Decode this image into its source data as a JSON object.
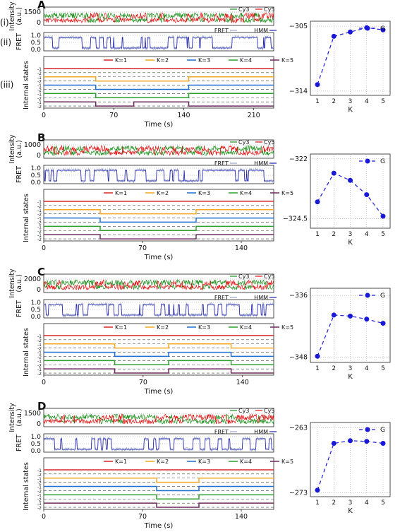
{
  "chart_data": [
    {
      "panel": "A",
      "roman": [
        "(i)",
        "(ii)",
        "(iii)"
      ],
      "type": "line",
      "time_label": "Time (s)",
      "time_ticks": [
        0,
        70,
        140,
        210
      ],
      "time_range": [
        0,
        230
      ],
      "intensity": {
        "ylabel": "Intensity\n(a.u.)",
        "yticks": [
          0,
          1500
        ],
        "legend": [
          "Cy3",
          "Cy5"
        ],
        "seed": 11
      },
      "fret": {
        "ylabel": "FRET",
        "yticks": [
          0.0,
          0.5,
          1.0
        ],
        "legend": [
          "FRET",
          "HMM"
        ],
        "seed": 12
      },
      "internal_states": {
        "ylabel": "Internal states",
        "legend": [
          "K=1",
          "K=2",
          "K=3",
          "K=4",
          "K=5"
        ],
        "switch_times": [
          52,
          145
        ],
        "k5_switch_times": [
          52,
          90,
          145
        ]
      },
      "model_selection": {
        "type": "line",
        "series": [
          {
            "name": "G",
            "x": [
              1,
              2,
              3,
              4,
              5
            ],
            "values": [
              -313.1,
              -306.4,
              -305.8,
              -305.2,
              -305.5
            ]
          }
        ],
        "xlabel": "K",
        "xticks": [
          1,
          2,
          3,
          4,
          5
        ],
        "yticks": [
          -314,
          -305
        ],
        "ylim": [
          -314.6,
          -304.3
        ]
      }
    },
    {
      "panel": "B",
      "type": "line",
      "time_label": "Time (s)",
      "time_ticks": [
        0,
        70,
        140
      ],
      "time_range": [
        0,
        163
      ],
      "intensity": {
        "ylabel": "Intensity\n(a.u.)",
        "yticks": [
          0,
          1000
        ],
        "legend": [
          "Cy3",
          "Cy5"
        ],
        "seed": 21
      },
      "fret": {
        "ylabel": "FRET",
        "yticks": [
          0.0,
          0.5,
          1.0
        ],
        "legend": [
          "FRET",
          "HMM"
        ],
        "seed": 22
      },
      "internal_states": {
        "ylabel": "Internal states",
        "legend": [
          "K=1",
          "K=2",
          "K=3",
          "K=4",
          "K=5"
        ],
        "switch_times": [
          40,
          108
        ],
        "k5_switch_times": [
          40,
          108
        ]
      },
      "model_selection": {
        "type": "line",
        "series": [
          {
            "name": "G",
            "x": [
              1,
              2,
              3,
              4,
              5
            ],
            "values": [
              -323.8,
              -322.6,
              -322.9,
              -323.5,
              -324.4
            ]
          }
        ],
        "xlabel": "K",
        "xticks": [
          1,
          2,
          3,
          4,
          5
        ],
        "yticks": [
          -324.5,
          -322.0
        ],
        "ylim": [
          -324.9,
          -321.8
        ]
      }
    },
    {
      "panel": "C",
      "type": "line",
      "time_label": "Time (s)",
      "time_ticks": [
        0,
        70,
        140
      ],
      "time_range": [
        0,
        162
      ],
      "intensity": {
        "ylabel": "Intensity\n(a.u.)",
        "yticks": [
          0,
          2000
        ],
        "legend": [
          "Cy3",
          "Cy5"
        ],
        "seed": 31
      },
      "fret": {
        "ylabel": "FRET",
        "yticks": [
          0.0,
          0.5,
          1.0
        ],
        "legend": [
          "FRET",
          "HMM"
        ],
        "seed": 32
      },
      "internal_states": {
        "ylabel": "Internal states",
        "legend": [
          "K=1",
          "K=2",
          "K=3",
          "K=4",
          "K=5"
        ],
        "switch_times": [
          50,
          88,
          132
        ],
        "k5_switch_times": [
          50,
          88,
          132
        ]
      },
      "model_selection": {
        "type": "line",
        "series": [
          {
            "name": "G",
            "x": [
              1,
              2,
              3,
              4,
              5
            ],
            "values": [
              -347.8,
              -339.8,
              -340.0,
              -340.6,
              -341.4
            ]
          }
        ],
        "xlabel": "K",
        "xticks": [
          1,
          2,
          3,
          4,
          5
        ],
        "yticks": [
          -348,
          -336
        ],
        "ylim": [
          -349.0,
          -334.6
        ]
      }
    },
    {
      "panel": "D",
      "type": "line",
      "time_label": "Time (s)",
      "time_ticks": [
        0,
        70,
        140
      ],
      "time_range": [
        0,
        163
      ],
      "intensity": {
        "ylabel": "Intensity\n(a.u.)",
        "yticks": [
          0,
          1500
        ],
        "legend": [
          "Cy3",
          "Cy5"
        ],
        "seed": 41
      },
      "fret": {
        "ylabel": "FRET",
        "yticks": [
          0.0,
          0.5,
          1.0
        ],
        "legend": [
          "FRET",
          "HMM"
        ],
        "seed": 42
      },
      "internal_states": {
        "ylabel": "Internal states",
        "legend": [
          "K=1",
          "K=2",
          "K=3",
          "K=4",
          "K=5"
        ],
        "switch_times": [
          80,
          110
        ],
        "k5_switch_times": [
          80,
          110
        ]
      },
      "model_selection": {
        "type": "line",
        "series": [
          {
            "name": "G",
            "x": [
              1,
              2,
              3,
              4,
              5
            ],
            "values": [
              -272.6,
              -265.4,
              -265.0,
              -265.1,
              -265.4
            ]
          }
        ],
        "xlabel": "K",
        "xticks": [
          1,
          2,
          3,
          4,
          5
        ],
        "yticks": [
          -273,
          -263
        ],
        "ylim": [
          -273.6,
          -262.2
        ]
      }
    }
  ],
  "colors": {
    "cy3": "#1a8f1a",
    "cy5": "#e01010",
    "fret": "#9aa7c8",
    "hmm": "#1f1fb0",
    "k": [
      "#d62728",
      "#f5a623",
      "#1f6fd1",
      "#2ca02c",
      "#6b2a5a"
    ],
    "g": "#1a1ad6"
  }
}
